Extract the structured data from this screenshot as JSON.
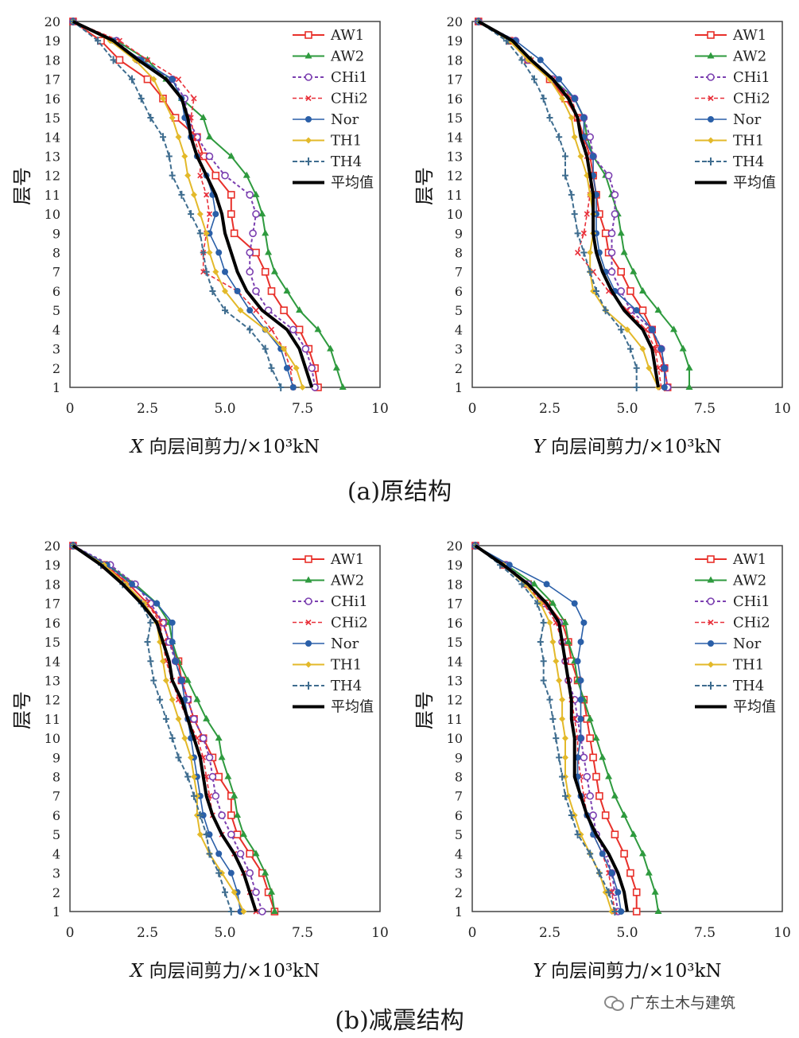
{
  "captions": {
    "a": "(a)原结构",
    "b": "(b)减震结构"
  },
  "watermark": "广东土木与建筑",
  "legend_names": [
    "AW1",
    "AW2",
    "CHi1",
    "CHi2",
    "Nor",
    "TH1",
    "TH4",
    "平均值"
  ],
  "series_styles": [
    {
      "name": "AW1",
      "color": "#e8302a",
      "marker": "square",
      "dash": "",
      "width": 2
    },
    {
      "name": "AW2",
      "color": "#2e9a3e",
      "marker": "triangle",
      "dash": "",
      "width": 2
    },
    {
      "name": "CHi1",
      "color": "#7b3fb0",
      "marker": "circle-open",
      "dash": "4,3",
      "width": 2
    },
    {
      "name": "CHi2",
      "color": "#e8303a",
      "marker": "x",
      "dash": "5,3",
      "width": 1.6
    },
    {
      "name": "Nor",
      "color": "#2a5fa8",
      "marker": "circle-filled",
      "dash": "",
      "width": 1.6
    },
    {
      "name": "TH1",
      "color": "#e3b92a",
      "marker": "diamond",
      "dash": "",
      "width": 2
    },
    {
      "name": "TH4",
      "color": "#3f6d8f",
      "marker": "plus",
      "dash": "6,3",
      "width": 2
    },
    {
      "name": "平均值",
      "color": "#000000",
      "marker": "none",
      "dash": "",
      "width": 4
    }
  ],
  "chart_data": [
    {
      "panel": "a-x",
      "type": "line",
      "ylabel": "层号",
      "xlabel_var": "X",
      "xlabel_rest": " 向层间剪力/×10³kN",
      "xlim": [
        0,
        10
      ],
      "ylim": [
        1,
        20
      ],
      "xticks": [
        "0",
        "2.5",
        "5.0",
        "7.5",
        "10"
      ],
      "yticks": [
        "1",
        "2",
        "3",
        "4",
        "5",
        "6",
        "7",
        "8",
        "9",
        "10",
        "11",
        "12",
        "13",
        "14",
        "15",
        "16",
        "17",
        "18",
        "19",
        "20"
      ],
      "floors": [
        1,
        2,
        3,
        4,
        5,
        6,
        7,
        8,
        9,
        10,
        11,
        12,
        13,
        14,
        15,
        16,
        17,
        18,
        19,
        20
      ],
      "series": [
        {
          "name": "AW1",
          "values": [
            8.0,
            7.9,
            7.7,
            7.4,
            6.9,
            6.5,
            6.3,
            6.0,
            5.3,
            5.2,
            5.2,
            4.7,
            4.3,
            4.1,
            3.4,
            3.0,
            2.5,
            1.6,
            1.0,
            0.1
          ]
        },
        {
          "name": "AW2",
          "values": [
            8.8,
            8.6,
            8.4,
            8.0,
            7.4,
            7.0,
            6.6,
            6.4,
            6.3,
            6.2,
            6.0,
            5.7,
            5.2,
            4.5,
            4.3,
            3.6,
            3.1,
            2.5,
            1.5,
            0.1
          ]
        },
        {
          "name": "CHi1",
          "values": [
            7.9,
            7.8,
            7.6,
            7.2,
            6.4,
            6.0,
            5.8,
            5.8,
            5.9,
            6.0,
            5.8,
            5.0,
            4.5,
            4.1,
            3.8,
            3.7,
            3.3,
            2.2,
            1.5,
            0.1
          ]
        },
        {
          "name": "CHi2",
          "values": [
            7.2,
            7.1,
            6.9,
            6.5,
            6.0,
            5.4,
            4.3,
            4.3,
            4.4,
            4.5,
            4.4,
            4.2,
            4.2,
            4.0,
            3.9,
            4.0,
            3.5,
            2.5,
            1.6,
            0.1
          ]
        },
        {
          "name": "Nor",
          "values": [
            7.2,
            7.0,
            6.8,
            6.3,
            5.8,
            5.4,
            5.0,
            4.8,
            4.5,
            4.7,
            4.6,
            4.4,
            4.1,
            3.9,
            3.7,
            3.6,
            3.3,
            2.3,
            1.4,
            0.1
          ]
        },
        {
          "name": "TH1",
          "values": [
            7.5,
            7.3,
            6.9,
            6.3,
            5.5,
            5.0,
            4.7,
            4.5,
            4.4,
            4.2,
            4.0,
            3.8,
            3.7,
            3.5,
            3.3,
            3.0,
            2.7,
            2.1,
            1.3,
            0.1
          ]
        },
        {
          "name": "TH4",
          "values": [
            6.8,
            6.5,
            6.3,
            5.8,
            5.0,
            4.6,
            4.4,
            4.3,
            4.2,
            3.9,
            3.6,
            3.3,
            3.2,
            3.0,
            2.6,
            2.3,
            2.0,
            1.4,
            0.9,
            0.1
          ]
        },
        {
          "name": "平均值",
          "values": [
            7.8,
            7.6,
            7.4,
            7.0,
            6.2,
            5.7,
            5.4,
            5.2,
            5.0,
            4.9,
            4.7,
            4.4,
            4.1,
            3.9,
            3.8,
            3.6,
            3.1,
            2.2,
            1.4,
            0.1
          ]
        }
      ]
    },
    {
      "panel": "a-y",
      "type": "line",
      "ylabel": "层号",
      "xlabel_var": "Y",
      "xlabel_rest": " 向层间剪力/×10³kN",
      "xlim": [
        0,
        10
      ],
      "ylim": [
        1,
        20
      ],
      "xticks": [
        "0",
        "2.5",
        "5.0",
        "7.5",
        "10"
      ],
      "yticks": [
        "1",
        "2",
        "3",
        "4",
        "5",
        "6",
        "7",
        "8",
        "9",
        "10",
        "11",
        "12",
        "13",
        "14",
        "15",
        "16",
        "17",
        "18",
        "19",
        "20"
      ],
      "floors": [
        1,
        2,
        3,
        4,
        5,
        6,
        7,
        8,
        9,
        10,
        11,
        12,
        13,
        14,
        15,
        16,
        17,
        18,
        19,
        20
      ],
      "series": [
        {
          "name": "AW1",
          "values": [
            6.3,
            6.2,
            6.0,
            5.8,
            5.5,
            5.1,
            4.8,
            4.4,
            4.3,
            4.1,
            4.0,
            3.9,
            3.8,
            3.6,
            3.4,
            3.0,
            2.5,
            1.8,
            1.2,
            0.2
          ]
        },
        {
          "name": "AW2",
          "values": [
            7.0,
            7.0,
            6.8,
            6.5,
            6.0,
            5.5,
            5.2,
            4.9,
            4.8,
            4.7,
            4.5,
            4.3,
            3.9,
            3.7,
            3.6,
            3.3,
            2.6,
            1.9,
            1.2,
            0.2
          ]
        },
        {
          "name": "CHi1",
          "values": [
            6.3,
            6.2,
            6.1,
            5.8,
            5.1,
            4.8,
            4.5,
            4.5,
            4.5,
            4.6,
            4.6,
            4.4,
            3.9,
            3.8,
            3.6,
            3.3,
            2.6,
            1.8,
            1.4,
            0.2
          ]
        },
        {
          "name": "CHi2",
          "values": [
            6.1,
            6.0,
            5.9,
            5.6,
            5.0,
            4.4,
            3.9,
            3.4,
            3.6,
            3.7,
            3.8,
            3.8,
            3.7,
            3.6,
            3.4,
            3.2,
            2.6,
            1.9,
            1.3,
            0.2
          ]
        },
        {
          "name": "Nor",
          "values": [
            6.2,
            6.2,
            6.1,
            5.8,
            5.3,
            4.6,
            4.3,
            4.1,
            4.0,
            4.0,
            4.0,
            3.9,
            3.9,
            3.6,
            3.6,
            3.3,
            2.8,
            2.2,
            1.4,
            0.2
          ]
        },
        {
          "name": "TH1",
          "values": [
            6.0,
            5.7,
            5.5,
            5.0,
            4.3,
            3.9,
            3.8,
            3.8,
            3.9,
            3.9,
            3.8,
            3.7,
            3.5,
            3.3,
            3.2,
            2.9,
            2.5,
            1.8,
            1.2,
            0.2
          ]
        },
        {
          "name": "TH4",
          "values": [
            5.3,
            5.3,
            5.1,
            4.8,
            4.3,
            4.0,
            3.8,
            3.6,
            3.4,
            3.3,
            3.2,
            3.0,
            3.0,
            2.8,
            2.5,
            2.3,
            2.0,
            1.6,
            1.1,
            0.2
          ]
        },
        {
          "name": "平均值",
          "values": [
            6.0,
            5.9,
            5.8,
            5.5,
            4.9,
            4.5,
            4.2,
            4.0,
            3.9,
            3.9,
            3.9,
            3.8,
            3.7,
            3.5,
            3.4,
            3.1,
            2.6,
            1.9,
            1.3,
            0.2
          ]
        }
      ]
    },
    {
      "panel": "b-x",
      "type": "line",
      "ylabel": "层号",
      "xlabel_var": "X",
      "xlabel_rest": " 向层间剪力/×10³kN",
      "xlim": [
        0,
        10
      ],
      "ylim": [
        1,
        20
      ],
      "xticks": [
        "0",
        "2.5",
        "5.0",
        "7.5",
        "10"
      ],
      "yticks": [
        "1",
        "2",
        "3",
        "4",
        "5",
        "6",
        "7",
        "8",
        "9",
        "10",
        "11",
        "12",
        "13",
        "14",
        "15",
        "16",
        "17",
        "18",
        "19",
        "20"
      ],
      "floors": [
        1,
        2,
        3,
        4,
        5,
        6,
        7,
        8,
        9,
        10,
        11,
        12,
        13,
        14,
        15,
        16,
        17,
        18,
        19,
        20
      ],
      "series": [
        {
          "name": "AW1",
          "values": [
            6.6,
            6.4,
            6.2,
            5.8,
            5.4,
            5.2,
            5.2,
            4.8,
            4.6,
            4.3,
            4.0,
            3.8,
            3.6,
            3.5,
            3.2,
            3.0,
            2.5,
            1.9,
            1.1,
            0.1
          ]
        },
        {
          "name": "AW2",
          "values": [
            6.6,
            6.5,
            6.3,
            6.0,
            5.6,
            5.4,
            5.3,
            5.1,
            4.9,
            4.8,
            4.4,
            4.1,
            3.8,
            3.5,
            3.3,
            3.2,
            2.8,
            2.1,
            1.2,
            0.1
          ]
        },
        {
          "name": "CHi1",
          "values": [
            6.2,
            6.0,
            5.8,
            5.5,
            5.2,
            4.9,
            4.7,
            4.6,
            4.5,
            4.3,
            4.0,
            3.8,
            3.6,
            3.4,
            3.2,
            3.0,
            2.6,
            2.1,
            1.3,
            0.1
          ]
        },
        {
          "name": "CHi2",
          "values": [
            6.0,
            5.8,
            5.6,
            5.3,
            4.9,
            4.6,
            4.5,
            4.4,
            4.3,
            4.1,
            3.8,
            3.5,
            3.3,
            3.1,
            3.0,
            2.9,
            2.5,
            1.9,
            1.2,
            0.1
          ]
        },
        {
          "name": "Nor",
          "values": [
            5.5,
            5.4,
            5.2,
            4.8,
            4.5,
            4.3,
            4.2,
            4.1,
            4.0,
            3.9,
            3.8,
            3.7,
            3.6,
            3.4,
            3.3,
            3.3,
            2.8,
            2.0,
            1.2,
            0.1
          ]
        },
        {
          "name": "TH1",
          "values": [
            5.6,
            5.3,
            4.9,
            4.5,
            4.2,
            4.1,
            4.1,
            4.0,
            3.9,
            3.7,
            3.5,
            3.3,
            3.1,
            3.0,
            2.9,
            2.8,
            2.4,
            1.8,
            1.1,
            0.1
          ]
        },
        {
          "name": "TH4",
          "values": [
            5.2,
            5.0,
            4.8,
            4.5,
            4.4,
            4.2,
            4.0,
            3.8,
            3.5,
            3.3,
            3.1,
            2.9,
            2.7,
            2.6,
            2.5,
            2.6,
            2.3,
            1.7,
            1.0,
            0.1
          ]
        },
        {
          "name": "平均值",
          "values": [
            6.0,
            5.8,
            5.6,
            5.3,
            4.9,
            4.6,
            4.4,
            4.3,
            4.2,
            4.0,
            3.8,
            3.6,
            3.3,
            3.2,
            3.0,
            2.8,
            2.3,
            1.7,
            1.0,
            0.1
          ]
        }
      ]
    },
    {
      "panel": "b-y",
      "type": "line",
      "ylabel": "层号",
      "xlabel_var": "Y",
      "xlabel_rest": " 向层间剪力/×10³kN",
      "xlim": [
        0,
        10
      ],
      "ylim": [
        1,
        20
      ],
      "xticks": [
        "0",
        "2.5",
        "5.0",
        "7.5",
        "10"
      ],
      "yticks": [
        "1",
        "2",
        "3",
        "4",
        "5",
        "6",
        "7",
        "8",
        "9",
        "10",
        "11",
        "12",
        "13",
        "14",
        "15",
        "16",
        "17",
        "18",
        "19",
        "20"
      ],
      "floors": [
        1,
        2,
        3,
        4,
        5,
        6,
        7,
        8,
        9,
        10,
        11,
        12,
        13,
        14,
        15,
        16,
        17,
        18,
        19,
        20
      ],
      "series": [
        {
          "name": "AW1",
          "values": [
            5.3,
            5.3,
            5.1,
            4.9,
            4.6,
            4.3,
            4.1,
            4.0,
            3.9,
            3.8,
            3.7,
            3.6,
            3.4,
            3.2,
            3.1,
            2.9,
            2.4,
            1.8,
            1.0,
            0.1
          ]
        },
        {
          "name": "AW2",
          "values": [
            6.0,
            5.9,
            5.7,
            5.5,
            5.2,
            4.9,
            4.6,
            4.4,
            4.2,
            4.0,
            3.8,
            3.6,
            3.4,
            3.3,
            3.1,
            3.0,
            2.6,
            2.0,
            1.1,
            0.1
          ]
        },
        {
          "name": "CHi1",
          "values": [
            4.7,
            4.6,
            4.5,
            4.3,
            4.0,
            3.9,
            3.8,
            3.7,
            3.6,
            3.5,
            3.4,
            3.3,
            3.1,
            3.0,
            2.9,
            2.8,
            2.3,
            1.8,
            1.1,
            0.1
          ]
        },
        {
          "name": "CHi2",
          "values": [
            4.6,
            4.5,
            4.4,
            4.2,
            3.9,
            3.7,
            3.6,
            3.5,
            3.4,
            3.4,
            3.3,
            3.2,
            3.1,
            3.0,
            2.9,
            2.7,
            2.3,
            1.7,
            1.0,
            0.1
          ]
        },
        {
          "name": "Nor",
          "values": [
            4.8,
            4.7,
            4.5,
            4.2,
            3.9,
            3.7,
            3.5,
            3.4,
            3.4,
            3.5,
            3.5,
            3.5,
            3.5,
            3.4,
            3.5,
            3.6,
            3.3,
            2.4,
            1.2,
            0.1
          ]
        },
        {
          "name": "TH1",
          "values": [
            4.5,
            4.3,
            4.1,
            3.8,
            3.5,
            3.3,
            3.1,
            3.0,
            3.0,
            3.0,
            2.9,
            2.9,
            2.8,
            2.7,
            2.6,
            2.5,
            2.2,
            1.7,
            1.0,
            0.1
          ]
        },
        {
          "name": "TH4",
          "values": [
            4.6,
            4.4,
            4.1,
            3.8,
            3.4,
            3.2,
            3.0,
            2.9,
            2.8,
            2.7,
            2.6,
            2.5,
            2.3,
            2.3,
            2.2,
            2.3,
            2.1,
            1.6,
            0.9,
            0.1
          ]
        },
        {
          "name": "平均值",
          "values": [
            5.0,
            4.9,
            4.7,
            4.4,
            4.0,
            3.7,
            3.5,
            3.3,
            3.3,
            3.3,
            3.2,
            3.2,
            3.1,
            3.0,
            2.9,
            2.8,
            2.4,
            1.8,
            1.0,
            0.1
          ]
        }
      ]
    }
  ]
}
